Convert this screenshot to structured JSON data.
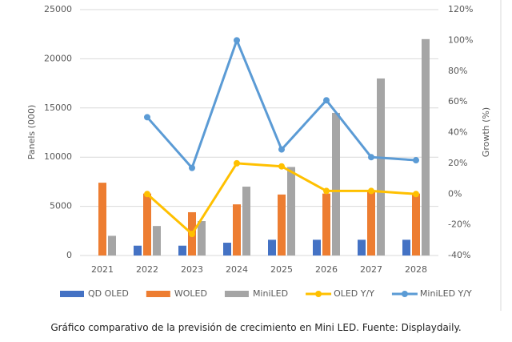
{
  "chart_data": {
    "type": "bar",
    "categories": [
      "2021",
      "2022",
      "2023",
      "2024",
      "2025",
      "2026",
      "2027",
      "2028"
    ],
    "y_label": "Panels (000)",
    "y2_label": "Growth (%)",
    "ylim": [
      0,
      25000
    ],
    "yticks": [
      0,
      5000,
      10000,
      15000,
      20000,
      25000
    ],
    "y2lim": [
      -40,
      120
    ],
    "y2ticks": [
      {
        "value": -40,
        "label": "-40%"
      },
      {
        "value": -20,
        "label": "-20%"
      },
      {
        "value": 0,
        "label": "0%"
      },
      {
        "value": 20,
        "label": "20%"
      },
      {
        "value": 40,
        "label": "40%"
      },
      {
        "value": 60,
        "label": "60%"
      },
      {
        "value": 80,
        "label": "80%"
      },
      {
        "value": 100,
        "label": "100%"
      },
      {
        "value": 120,
        "label": "120%"
      }
    ],
    "grid": true,
    "series": [
      {
        "name": "QD OLED",
        "type": "bar",
        "color": "#4472c4",
        "values": [
          null,
          1000,
          1000,
          1300,
          1600,
          1600,
          1600,
          1600
        ]
      },
      {
        "name": "WOLED",
        "type": "bar",
        "color": "#ed7d31",
        "values": [
          7400,
          6300,
          4400,
          5200,
          6200,
          6300,
          6500,
          6300
        ]
      },
      {
        "name": "MiniLED",
        "type": "bar",
        "color": "#a5a5a5",
        "values": [
          2000,
          3000,
          3500,
          7000,
          9000,
          14500,
          18000,
          22000
        ]
      },
      {
        "name": "OLED Y/Y",
        "type": "line",
        "axis": "y2",
        "color": "#ffc000",
        "values": [
          null,
          0,
          -26,
          20,
          18,
          2,
          2,
          0
        ]
      },
      {
        "name": "MiniLED Y/Y",
        "type": "line",
        "axis": "y2",
        "color": "#5b9bd5",
        "values": [
          null,
          50,
          17,
          100,
          29,
          61,
          24,
          22
        ]
      }
    ]
  },
  "caption": "Gráfico comparativo de la previsión de crecimiento en Mini LED. Fuente: Displaydaily."
}
